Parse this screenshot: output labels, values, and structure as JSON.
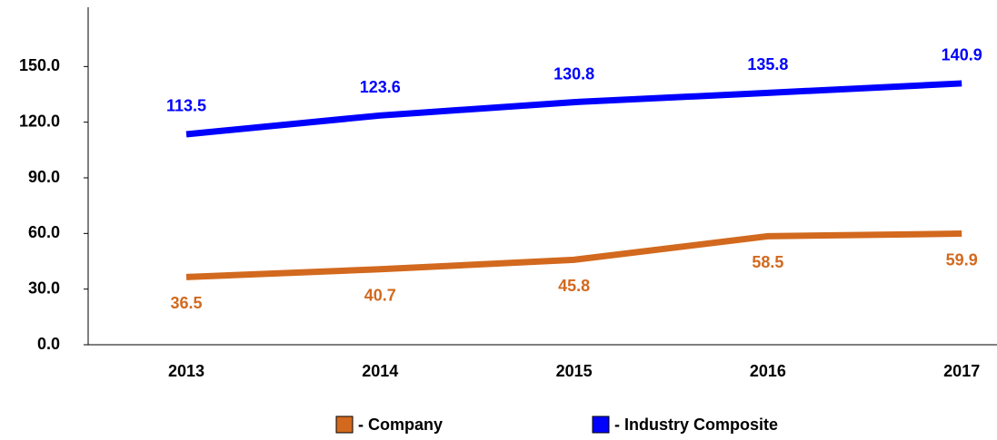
{
  "chart_data": {
    "type": "line",
    "categories": [
      "2013",
      "2014",
      "2015",
      "2016",
      "2017"
    ],
    "series": [
      {
        "name": "- Company",
        "color": "#d2691e",
        "values": [
          36.5,
          40.7,
          45.8,
          58.5,
          59.9
        ]
      },
      {
        "name": "- Industry Composite",
        "color": "#0000ff",
        "values": [
          113.5,
          123.6,
          130.8,
          135.8,
          140.9
        ]
      }
    ],
    "ylim": [
      0,
      180
    ],
    "yticks": [
      {
        "value": 0,
        "label": "0.0"
      },
      {
        "value": 30,
        "label": "30.0"
      },
      {
        "value": 60,
        "label": "60.0"
      },
      {
        "value": 90,
        "label": "90.0"
      },
      {
        "value": 120,
        "label": "120.0"
      },
      {
        "value": 150,
        "label": "150.0"
      }
    ],
    "legend": "bottom"
  }
}
